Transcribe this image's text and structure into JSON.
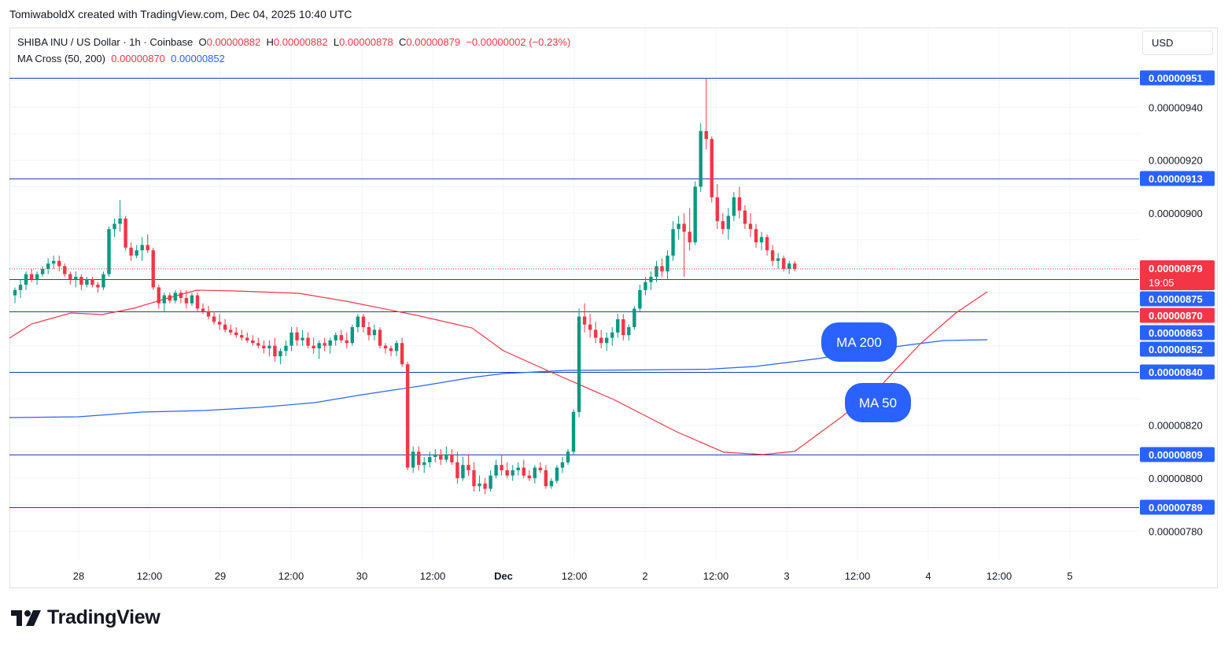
{
  "header": {
    "attribution": "TomiwaboldX created with TradingView.com, Dec 04, 2025 10:40 UTC"
  },
  "legend": {
    "symbol": "SHIBA INU / US Dollar · 1h · Coinbase",
    "o_label": "O",
    "o_value": "0.00000882",
    "h_label": "H",
    "h_value": "0.00000882",
    "l_label": "L",
    "l_value": "0.00000878",
    "c_label": "C",
    "c_value": "0.00000879",
    "change": "−0.00000002 (−0.23%)",
    "indicator": "MA Cross (50, 200)",
    "ma50_value": "0.00000870",
    "ma200_value": "0.00000852"
  },
  "currency_button": "USD",
  "brand": "TradingView",
  "colors": {
    "up": "#089981",
    "down": "#f23645",
    "ma50": "#f23645",
    "ma200": "#2962ff",
    "levels": "#1c3fb0",
    "label_bg": "#2962ff"
  },
  "chart_data": {
    "type": "candlestick",
    "symbol": "SHIBA INU / US Dollar",
    "interval": "1h",
    "exchange": "Coinbase",
    "y_axis": {
      "ticks": [
        "0.00000940",
        "0.00000920",
        "0.00000900",
        "0.00000820",
        "0.00000800",
        "0.00000780"
      ]
    },
    "x_axis": {
      "ticks": [
        "28",
        "12:00",
        "29",
        "12:00",
        "30",
        "12:00",
        "Dec",
        "12:00",
        "2",
        "12:00",
        "3",
        "12:00",
        "4",
        "12:00",
        "5"
      ]
    },
    "horizontal_levels": [
      "0.00000951",
      "0.00000913",
      "0.00000875",
      "0.00000863",
      "0.00000840",
      "0.00000809",
      "0.00000789"
    ],
    "last_price": {
      "value": "0.00000879",
      "countdown": "19:05"
    },
    "ma50_value_label": "0.00000870",
    "ma200_value_label": "0.00000852",
    "annotations": [
      "MA 200",
      "MA 50"
    ],
    "series": [
      {
        "name": "MA Cross (50, 200)",
        "ma50": "0.00000870",
        "ma200": "0.00000852"
      }
    ],
    "candles": [
      [
        27.1,
        869,
        872,
        866,
        871
      ],
      [
        27.2,
        871,
        875,
        868,
        873
      ],
      [
        27.3,
        873,
        878,
        871,
        877
      ],
      [
        27.4,
        877,
        879,
        874,
        875
      ],
      [
        27.5,
        875,
        878,
        873,
        877
      ],
      [
        27.6,
        877,
        880,
        876,
        879
      ],
      [
        27.7,
        879,
        883,
        877,
        881
      ],
      [
        27.8,
        881,
        884,
        879,
        882
      ],
      [
        27.9,
        882,
        884,
        878,
        880
      ],
      [
        28.0,
        880,
        881,
        876,
        877
      ],
      [
        28.1,
        877,
        878,
        873,
        875
      ],
      [
        28.2,
        875,
        878,
        872,
        876
      ],
      [
        28.3,
        876,
        877,
        871,
        873
      ],
      [
        28.4,
        873,
        876,
        872,
        875
      ],
      [
        28.5,
        875,
        876,
        872,
        873
      ],
      [
        28.6,
        873,
        874,
        870,
        872
      ],
      [
        28.7,
        872,
        878,
        871,
        877
      ],
      [
        28.8,
        877,
        895,
        876,
        894
      ],
      [
        28.9,
        894,
        898,
        891,
        896
      ],
      [
        29.0,
        896,
        905,
        893,
        898
      ],
      [
        29.1,
        898,
        899,
        886,
        887
      ],
      [
        29.2,
        887,
        889,
        882,
        884
      ],
      [
        29.3,
        884,
        888,
        883,
        886
      ],
      [
        29.4,
        886,
        891,
        882,
        888
      ],
      [
        29.5,
        888,
        892,
        885,
        886
      ],
      [
        29.6,
        886,
        887,
        871,
        872
      ],
      [
        29.7,
        872,
        873,
        864,
        866
      ],
      [
        29.8,
        866,
        870,
        863,
        869
      ],
      [
        29.9,
        869,
        870,
        866,
        867
      ],
      [
        30.0,
        867,
        871,
        866,
        870
      ],
      [
        30.1,
        870,
        871,
        866,
        868
      ],
      [
        30.2,
        868,
        871,
        864,
        866
      ],
      [
        30.3,
        866,
        870,
        865,
        869
      ],
      [
        30.4,
        869,
        870,
        863,
        864
      ],
      [
        30.5,
        864,
        866,
        862,
        863
      ],
      [
        30.6,
        863,
        865,
        860,
        861
      ],
      [
        30.7,
        861,
        863,
        858,
        859
      ],
      [
        30.8,
        859,
        862,
        856,
        858
      ],
      [
        30.9,
        858,
        860,
        855,
        856
      ],
      [
        31.0,
        856,
        858,
        854,
        855
      ],
      [
        31.1,
        855,
        857,
        853,
        854
      ],
      [
        31.2,
        854,
        856,
        852,
        853
      ],
      [
        31.3,
        853,
        855,
        851,
        852
      ],
      [
        31.4,
        852,
        854,
        850,
        851
      ],
      [
        31.5,
        851,
        853,
        849,
        850
      ],
      [
        31.6,
        850,
        852,
        847,
        849
      ],
      [
        31.7,
        849,
        852,
        846,
        850
      ],
      [
        31.8,
        850,
        853,
        844,
        846
      ],
      [
        31.9,
        846,
        849,
        843,
        848
      ],
      [
        32.0,
        848,
        852,
        846,
        850
      ],
      [
        32.1,
        850,
        857,
        848,
        855
      ],
      [
        32.2,
        855,
        857,
        850,
        852
      ],
      [
        32.3,
        852,
        856,
        850,
        853
      ],
      [
        32.4,
        853,
        855,
        849,
        850
      ],
      [
        32.5,
        850,
        853,
        847,
        849
      ],
      [
        32.6,
        849,
        852,
        845,
        851
      ],
      [
        32.7,
        851,
        853,
        848,
        850
      ],
      [
        32.8,
        850,
        853,
        847,
        852
      ],
      [
        32.9,
        852,
        855,
        850,
        854
      ],
      [
        33.0,
        854,
        856,
        851,
        852
      ],
      [
        33.1,
        852,
        855,
        849,
        851
      ],
      [
        33.2,
        851,
        858,
        850,
        857
      ],
      [
        33.3,
        857,
        862,
        855,
        861
      ],
      [
        33.4,
        861,
        862,
        855,
        857
      ],
      [
        33.5,
        857,
        859,
        852,
        854
      ],
      [
        33.6,
        854,
        858,
        852,
        856
      ],
      [
        33.7,
        856,
        857,
        849,
        850
      ],
      [
        33.8,
        850,
        851,
        847,
        849
      ],
      [
        33.9,
        849,
        850,
        846,
        848
      ],
      [
        34.0,
        848,
        852,
        846,
        851
      ],
      [
        34.1,
        851,
        853,
        842,
        843
      ],
      [
        34.2,
        843,
        844,
        803,
        804
      ],
      [
        34.3,
        804,
        812,
        802,
        810
      ],
      [
        34.4,
        810,
        812,
        803,
        805
      ],
      [
        34.5,
        805,
        808,
        802,
        806
      ],
      [
        34.6,
        806,
        810,
        804,
        808
      ],
      [
        34.7,
        808,
        811,
        806,
        809
      ],
      [
        34.8,
        809,
        811,
        805,
        807
      ],
      [
        34.9,
        807,
        812,
        806,
        809
      ],
      [
        35.0,
        809,
        811,
        805,
        806
      ],
      [
        35.1,
        806,
        810,
        798,
        800
      ],
      [
        35.2,
        800,
        808,
        799,
        805
      ],
      [
        35.3,
        805,
        809,
        801,
        803
      ],
      [
        35.4,
        803,
        806,
        795,
        797
      ],
      [
        35.5,
        797,
        801,
        795,
        798
      ],
      [
        35.6,
        798,
        800,
        794,
        796
      ],
      [
        35.7,
        796,
        803,
        795,
        801
      ],
      [
        35.8,
        801,
        807,
        800,
        805
      ],
      [
        35.9,
        805,
        809,
        801,
        803
      ],
      [
        36.0,
        803,
        806,
        800,
        801
      ],
      [
        36.1,
        801,
        805,
        799,
        803
      ],
      [
        36.2,
        803,
        806,
        801,
        804
      ],
      [
        36.3,
        804,
        807,
        800,
        801
      ],
      [
        36.4,
        801,
        803,
        799,
        800
      ],
      [
        36.5,
        800,
        805,
        798,
        804
      ],
      [
        36.6,
        804,
        806,
        802,
        803
      ],
      [
        36.7,
        803,
        805,
        796,
        797
      ],
      [
        36.8,
        797,
        800,
        796,
        799
      ],
      [
        36.9,
        799,
        805,
        798,
        804
      ],
      [
        37.0,
        804,
        808,
        802,
        806
      ],
      [
        37.1,
        806,
        811,
        805,
        810
      ],
      [
        37.2,
        810,
        826,
        809,
        825
      ],
      [
        37.3,
        825,
        864,
        823,
        861
      ],
      [
        37.4,
        861,
        866,
        855,
        858
      ],
      [
        37.5,
        858,
        862,
        853,
        856
      ],
      [
        37.6,
        856,
        859,
        851,
        853
      ],
      [
        37.7,
        853,
        856,
        849,
        851
      ],
      [
        37.8,
        851,
        855,
        848,
        853
      ],
      [
        37.9,
        853,
        857,
        850,
        855
      ],
      [
        38.0,
        855,
        862,
        853,
        860
      ],
      [
        38.1,
        860,
        862,
        852,
        854
      ],
      [
        38.2,
        854,
        858,
        852,
        857
      ],
      [
        38.3,
        857,
        865,
        856,
        864
      ],
      [
        38.4,
        864,
        873,
        863,
        871
      ],
      [
        38.5,
        871,
        876,
        869,
        874
      ],
      [
        38.6,
        874,
        878,
        871,
        876
      ],
      [
        38.7,
        876,
        882,
        874,
        880
      ],
      [
        38.8,
        880,
        883,
        876,
        878
      ],
      [
        38.9,
        878,
        886,
        875,
        884
      ],
      [
        39.0,
        884,
        897,
        882,
        894
      ],
      [
        39.1,
        894,
        899,
        890,
        896
      ],
      [
        39.2,
        896,
        900,
        876,
        893
      ],
      [
        39.3,
        893,
        902,
        886,
        889
      ],
      [
        39.4,
        889,
        912,
        888,
        910
      ],
      [
        39.5,
        910,
        934,
        908,
        931
      ],
      [
        39.6,
        931,
        951,
        924,
        928
      ],
      [
        39.7,
        928,
        929,
        904,
        906
      ],
      [
        39.8,
        906,
        911,
        894,
        897
      ],
      [
        39.9,
        897,
        900,
        892,
        894
      ],
      [
        40.0,
        894,
        902,
        890,
        899
      ],
      [
        40.1,
        899,
        908,
        897,
        906
      ],
      [
        40.2,
        906,
        910,
        898,
        901
      ],
      [
        40.3,
        901,
        903,
        894,
        896
      ],
      [
        40.4,
        896,
        900,
        891,
        894
      ],
      [
        40.5,
        894,
        896,
        887,
        889
      ],
      [
        40.6,
        889,
        893,
        886,
        891
      ],
      [
        40.7,
        891,
        892,
        884,
        886
      ],
      [
        40.8,
        886,
        888,
        880,
        882
      ],
      [
        40.9,
        882,
        885,
        879,
        883
      ],
      [
        41.0,
        883,
        884,
        878,
        879
      ],
      [
        41.1,
        879,
        882,
        877,
        881
      ],
      [
        41.2,
        881,
        882,
        878,
        879
      ]
    ]
  }
}
